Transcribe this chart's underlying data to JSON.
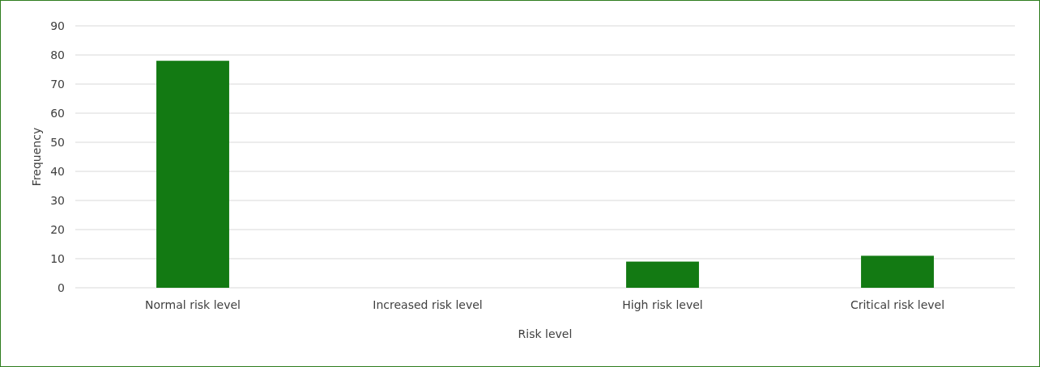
{
  "chart_data": {
    "type": "bar",
    "xlabel": "Risk level",
    "ylabel": "Frequency",
    "categories": [
      "Normal risk level",
      "Increased risk level",
      "High risk level",
      "Critical risk level"
    ],
    "values": [
      78,
      0,
      9,
      11
    ],
    "color": "#137a13",
    "ylim": [
      0,
      90
    ],
    "yticks": [
      0,
      10,
      20,
      30,
      40,
      50,
      60,
      70,
      80,
      90
    ],
    "grid": "y"
  }
}
